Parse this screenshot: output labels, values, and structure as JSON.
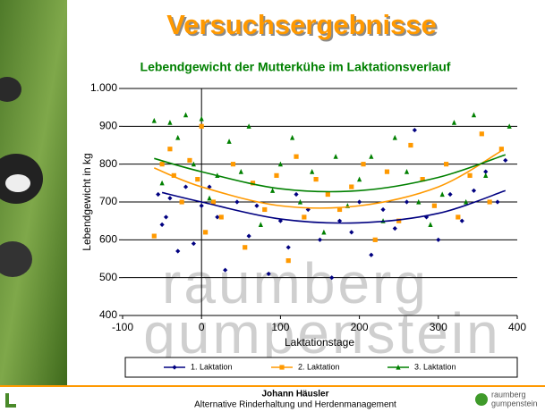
{
  "chart_data": {
    "type": "scatter",
    "title": "Versuchsergebnisse",
    "subtitle": "Lebendgewicht der Mutterkühe im Laktationsverlauf",
    "x_label": "Laktationstage",
    "y_label": "Lebendgewicht in kg",
    "xlim": [
      -100,
      400
    ],
    "xticks": [
      -100,
      0,
      100,
      200,
      300,
      400
    ],
    "ylim": [
      400,
      1000
    ],
    "yticks": [
      400,
      500,
      600,
      700,
      800,
      900,
      {
        "value": 1000,
        "label": "1.000"
      }
    ],
    "grid": true,
    "legend": "bottom",
    "series": [
      {
        "name": "1. Laktation",
        "color": "#000080",
        "marker": "diamond",
        "x": [
          -55,
          -50,
          -45,
          -40,
          -30,
          -20,
          -10,
          0,
          10,
          20,
          30,
          45,
          60,
          70,
          85,
          100,
          110,
          120,
          135,
          150,
          165,
          175,
          190,
          200,
          215,
          230,
          245,
          260,
          270,
          285,
          300,
          315,
          330,
          345,
          360,
          375,
          385
        ],
        "values": [
          720,
          640,
          660,
          710,
          570,
          740,
          590,
          690,
          740,
          660,
          520,
          700,
          610,
          690,
          510,
          650,
          580,
          720,
          680,
          600,
          500,
          650,
          620,
          700,
          560,
          680,
          630,
          700,
          890,
          660,
          600,
          720,
          650,
          730,
          780,
          700,
          810
        ],
        "trend": {
          "color": "#000080",
          "x": [
            -50,
            0,
            100,
            200,
            300,
            385
          ],
          "values": [
            725,
            700,
            655,
            645,
            670,
            730
          ]
        }
      },
      {
        "name": "2. Laktation",
        "color": "#ff9900",
        "marker": "square",
        "x": [
          -60,
          -50,
          -40,
          -35,
          -25,
          -15,
          -5,
          0,
          5,
          15,
          25,
          40,
          55,
          65,
          80,
          95,
          110,
          120,
          130,
          145,
          160,
          175,
          190,
          205,
          220,
          235,
          250,
          265,
          280,
          295,
          310,
          325,
          340,
          355,
          365,
          380
        ],
        "values": [
          610,
          800,
          840,
          770,
          700,
          810,
          760,
          900,
          620,
          700,
          660,
          800,
          580,
          750,
          680,
          770,
          545,
          820,
          660,
          760,
          720,
          680,
          740,
          800,
          600,
          780,
          650,
          850,
          760,
          690,
          800,
          660,
          770,
          880,
          700,
          840
        ],
        "trend": {
          "color": "#ff9900",
          "x": [
            -60,
            0,
            100,
            200,
            300,
            380
          ],
          "values": [
            790,
            740,
            690,
            690,
            740,
            835
          ]
        }
      },
      {
        "name": "3. Laktation",
        "color": "#008000",
        "marker": "triangle",
        "x": [
          -60,
          -50,
          -40,
          -30,
          -20,
          -10,
          0,
          10,
          20,
          35,
          50,
          60,
          75,
          90,
          100,
          115,
          125,
          140,
          155,
          170,
          185,
          200,
          215,
          230,
          245,
          260,
          275,
          290,
          305,
          320,
          335,
          345,
          360,
          390
        ],
        "values": [
          915,
          750,
          910,
          870,
          930,
          800,
          920,
          710,
          770,
          860,
          780,
          900,
          640,
          730,
          800,
          870,
          700,
          780,
          620,
          820,
          690,
          760,
          820,
          650,
          870,
          780,
          700,
          640,
          720,
          910,
          700,
          930,
          770,
          900
        ],
        "trend": {
          "color": "#008000",
          "x": [
            -60,
            0,
            100,
            200,
            300,
            385
          ],
          "values": [
            815,
            780,
            735,
            730,
            765,
            825
          ]
        }
      }
    ],
    "watermark": [
      "raumberg",
      "gumpenstein"
    ],
    "footer": {
      "author": "Johann Häusler",
      "subtitle": "Alternative Rinderhaltung und Herdenmanagement",
      "logo": [
        "raumberg",
        "gumpenstein"
      ]
    }
  }
}
